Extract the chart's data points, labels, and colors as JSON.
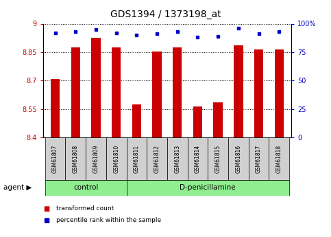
{
  "title": "GDS1394 / 1373198_at",
  "categories": [
    "GSM61807",
    "GSM61808",
    "GSM61809",
    "GSM61810",
    "GSM61811",
    "GSM61812",
    "GSM61813",
    "GSM61814",
    "GSM61815",
    "GSM61816",
    "GSM61817",
    "GSM61818"
  ],
  "bar_values": [
    8.71,
    8.875,
    8.925,
    8.875,
    8.575,
    8.855,
    8.875,
    8.565,
    8.585,
    8.885,
    8.865,
    8.865
  ],
  "percentile_values": [
    92,
    93,
    95,
    92,
    90,
    91,
    93,
    88,
    89,
    96,
    91,
    93
  ],
  "y_min": 8.4,
  "y_max": 9.0,
  "y_ticks": [
    8.4,
    8.55,
    8.7,
    8.85,
    9.0
  ],
  "y_tick_labels": [
    "8.4",
    "8.55",
    "8.7",
    "8.85",
    "9"
  ],
  "right_y_ticks": [
    0,
    25,
    50,
    75,
    100
  ],
  "right_y_labels": [
    "0",
    "25",
    "50",
    "75",
    "100%"
  ],
  "bar_color": "#cc0000",
  "dot_color": "#0000cc",
  "bar_bottom": 8.4,
  "groups": [
    {
      "label": "control",
      "start": 0,
      "end": 4
    },
    {
      "label": "D-penicillamine",
      "start": 4,
      "end": 12
    }
  ],
  "agent_label": "agent",
  "legend_items": [
    {
      "color": "#cc0000",
      "label": "transformed count"
    },
    {
      "color": "#0000cc",
      "label": "percentile rank within the sample"
    }
  ],
  "background_color": "#ffffff",
  "tick_label_color_left": "#cc0000",
  "tick_label_color_right": "#0000cc",
  "label_box_color": "#d0d0d0",
  "group_box_color": "#90ee90"
}
